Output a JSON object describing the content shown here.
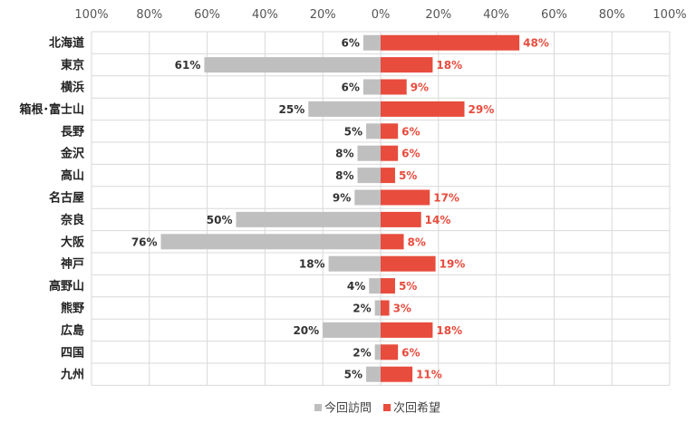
{
  "chart_data": {
    "type": "bar",
    "orientation": "horizontal-diverging",
    "categories": [
      "北海道",
      "東京",
      "横浜",
      "箱根･富士山",
      "長野",
      "金沢",
      "高山",
      "名古屋",
      "奈良",
      "大阪",
      "神戸",
      "高野山",
      "熊野",
      "広島",
      "四国",
      "九州"
    ],
    "series": [
      {
        "name": "今回訪問",
        "direction": "left",
        "color": "#bfbfbf",
        "label_color": "#333333",
        "values": [
          6,
          61,
          6,
          25,
          5,
          8,
          8,
          9,
          50,
          76,
          18,
          4,
          2,
          20,
          2,
          5
        ]
      },
      {
        "name": "次回希望",
        "direction": "right",
        "color": "#e84c3d",
        "label_color": "#e84c3d",
        "values": [
          48,
          18,
          9,
          29,
          6,
          6,
          5,
          17,
          14,
          8,
          19,
          5,
          3,
          18,
          6,
          11
        ]
      }
    ],
    "x_ticks": [
      "100%",
      "80%",
      "60%",
      "40%",
      "20%",
      "0%",
      "20%",
      "40%",
      "60%",
      "80%",
      "100%"
    ],
    "xlim": [
      -100,
      100
    ],
    "value_suffix": "%",
    "grid": true,
    "legend_position": "bottom-center"
  }
}
